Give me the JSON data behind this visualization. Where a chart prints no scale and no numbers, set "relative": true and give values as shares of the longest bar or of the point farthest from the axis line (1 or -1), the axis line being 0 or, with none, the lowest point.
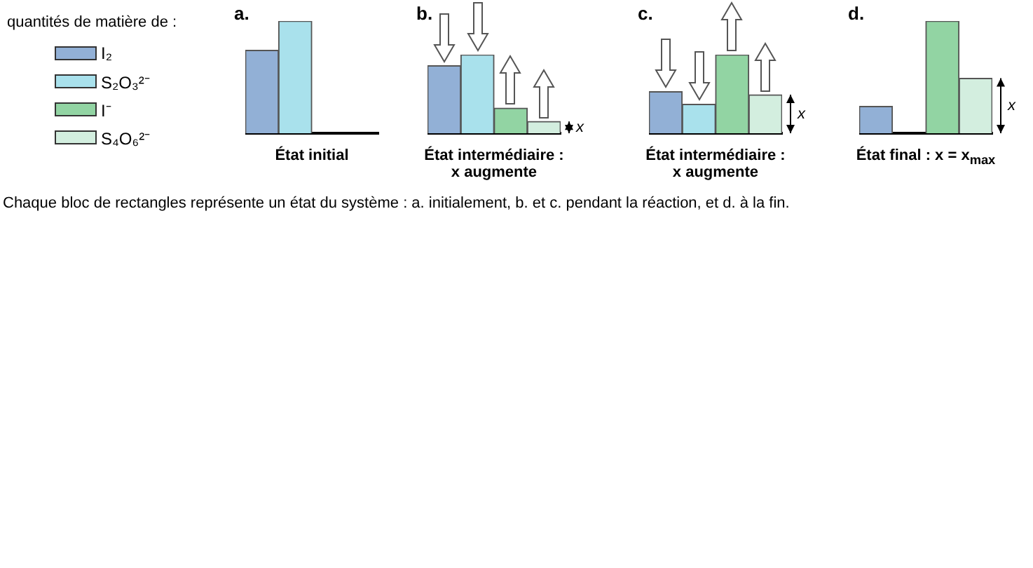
{
  "chart_data": [
    {
      "type": "bar",
      "title": "a.",
      "xlabel": "État initial",
      "categories": [
        null
      ],
      "relative": true,
      "legend": "left",
      "legend_title": "quantités de matière de :",
      "annotations": [
        "Chaque bloc de rectangles représente un état du système : a.  initialement, b.  et c.  pendant la réaction, et d.  à la fin."
      ],
      "series": [
        {
          "name": "I₂",
          "color": "#92b0d6",
          "values": [
            0.74
          ]
        },
        {
          "name": "S₂O₃²⁻",
          "color": "#a9e1ec",
          "values": [
            1
          ]
        },
        {
          "name": "I⁻",
          "color": "#92d4a3",
          "values": [
            0
          ]
        },
        {
          "name": "S₄O₆²⁻",
          "color": "#d3eedf",
          "values": [
            0
          ]
        }
      ]
    },
    {
      "type": "bar",
      "title": "b.",
      "xlabel": "État intermédiaire :\nx augmente",
      "categories": [
        null
      ],
      "relative": true,
      "annotations": [
        "x"
      ],
      "series": [
        {
          "color": "#92b0d6",
          "values": [
            0.86
          ]
        },
        {
          "color": "#a9e1ec",
          "values": [
            1
          ]
        },
        {
          "color": "#92d4a3",
          "values": [
            0.32
          ]
        },
        {
          "color": "#d3eedf",
          "values": [
            0.15
          ]
        }
      ]
    },
    {
      "type": "bar",
      "title": "c.",
      "xlabel": "État intermédiaire :\nx augmente",
      "categories": [
        null
      ],
      "relative": true,
      "annotations": [
        "x"
      ],
      "series": [
        {
          "color": "#92b0d6",
          "values": [
            0.53
          ]
        },
        {
          "color": "#a9e1ec",
          "values": [
            0.37
          ]
        },
        {
          "color": "#92d4a3",
          "values": [
            1
          ]
        },
        {
          "color": "#d3eedf",
          "values": [
            0.49
          ]
        }
      ]
    },
    {
      "type": "bar",
      "title": "d.",
      "xlabel": "État final : x = x$_{max}$",
      "categories": [
        null
      ],
      "relative": true,
      "annotations": [
        "x"
      ],
      "series": [
        {
          "color": "#92b0d6",
          "values": [
            0.24
          ]
        },
        {
          "color": "#a9e1ec",
          "values": [
            0
          ]
        },
        {
          "color": "#92d4a3",
          "values": [
            1
          ]
        },
        {
          "color": "#d3eedf",
          "values": [
            0.49
          ]
        }
      ]
    }
  ]
}
